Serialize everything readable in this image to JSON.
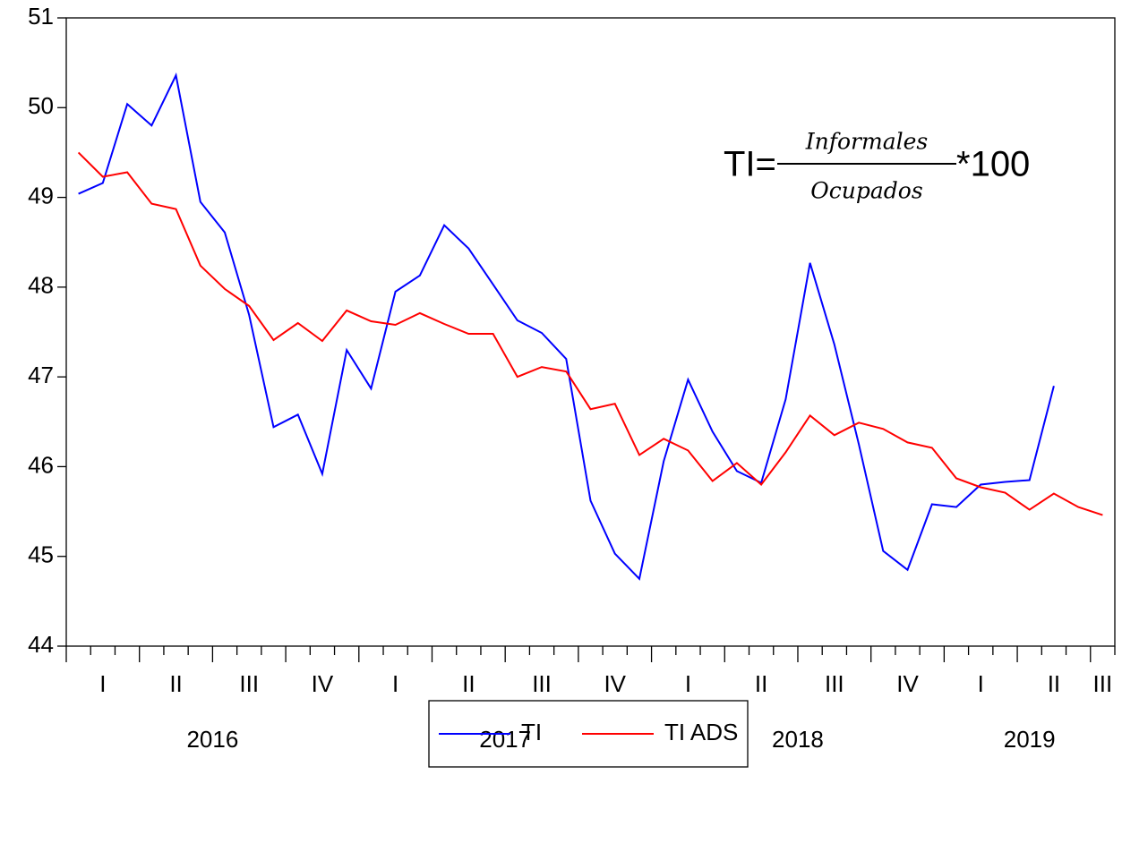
{
  "chart_data": {
    "type": "line",
    "annotation": {
      "lhs": "TI=",
      "numerator": "Informales",
      "denominator": "Ocupados",
      "rhs": "*100"
    },
    "quarter_labels": [
      "I",
      "II",
      "III",
      "IV",
      "I",
      "II",
      "III",
      "IV",
      "I",
      "II",
      "III",
      "IV",
      "I",
      "II",
      "III"
    ],
    "years": [
      "2016",
      "2017",
      "2018",
      "2019"
    ],
    "series": [
      {
        "name": "TI",
        "color": "#0000ff",
        "values": [
          49.04,
          49.16,
          50.04,
          49.8,
          50.36,
          48.95,
          48.61,
          47.69,
          46.44,
          46.58,
          45.92,
          47.3,
          46.87,
          47.95,
          48.13,
          48.69,
          48.43,
          48.03,
          47.63,
          47.49,
          47.2,
          45.62,
          45.03,
          44.75,
          46.06,
          46.97,
          46.39,
          45.95,
          45.82,
          46.75,
          48.27,
          47.36,
          46.25,
          45.06,
          44.85,
          45.58,
          45.55,
          45.8,
          45.83,
          45.85,
          46.9,
          null,
          null
        ]
      },
      {
        "name": "TI ADS",
        "color": "#ff0000",
        "values": [
          49.5,
          49.23,
          49.28,
          48.93,
          48.87,
          48.24,
          47.98,
          47.79,
          47.41,
          47.6,
          47.4,
          47.74,
          47.62,
          47.58,
          47.71,
          47.59,
          47.48,
          47.48,
          47.0,
          47.11,
          47.06,
          46.64,
          46.7,
          46.13,
          46.31,
          46.18,
          45.84,
          46.04,
          45.8,
          46.16,
          46.57,
          46.35,
          46.49,
          46.42,
          46.27,
          46.21,
          45.87,
          45.77,
          45.71,
          45.52,
          45.7,
          45.55,
          45.46
        ]
      }
    ],
    "ylim": [
      44,
      51
    ],
    "yticks": [
      44,
      45,
      46,
      47,
      48,
      49,
      50,
      51
    ],
    "legend": "bottom"
  }
}
